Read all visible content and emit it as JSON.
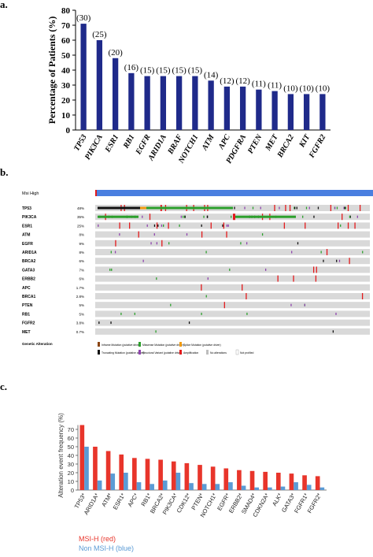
{
  "panels": {
    "a": "a.",
    "b": "b.",
    "c": "c."
  },
  "chart_data": [
    {
      "type": "bar",
      "ylabel": "Percentage of Patients (%)",
      "ylim": [
        0,
        80
      ],
      "yticks": [
        0,
        10,
        20,
        30,
        40,
        50,
        60,
        70,
        80
      ],
      "categories": [
        "TP53",
        "PIK3CA",
        "ESR1",
        "RB1",
        "EGFR",
        "ARID1A",
        "BRAF",
        "NOTCH1",
        "ATM",
        "APC",
        "PDGFRA",
        "PTEN",
        "MET",
        "BRCA2",
        "KIT",
        "FGFR2"
      ],
      "values": [
        71,
        60,
        48,
        38,
        36,
        36,
        36,
        36,
        33,
        29,
        29,
        27,
        26,
        24,
        24,
        24
      ],
      "data_labels": [
        "(30)",
        "(25)",
        "(20)",
        "(16)",
        "(15)",
        "(15)",
        "(15)",
        "(15)",
        "(14)",
        "(12)",
        "(12)",
        "(11)",
        "(11)",
        "(10)",
        "(10)",
        "(10)"
      ],
      "color": "#1f2a8a"
    },
    {
      "type": "heatmap",
      "header_track": {
        "label": "Msi High",
        "color": "#4a7fe0"
      },
      "genes": [
        "TP53",
        "PIK3CA",
        "ESR1",
        "ATM",
        "EGFR",
        "ARID1A",
        "BRCA2",
        "GATA3",
        "ERBB2",
        "APC",
        "BRCA1",
        "PTEN",
        "RB1",
        "FGFR2",
        "MET"
      ],
      "percentages": [
        "48%",
        "35%",
        "25%",
        "8%",
        "9%",
        "8%",
        "6%",
        "7%",
        "6%",
        "1.7%",
        "2.8%",
        "5%",
        "5%",
        "3.8%",
        "0.7%"
      ],
      "legend_title": "Genetic Alteration",
      "legend": [
        {
          "label": "Inframe Mutation (putative driver)",
          "color": "#8b4513"
        },
        {
          "label": "Missense Mutation (putative driver)",
          "color": "#2ca02c"
        },
        {
          "label": "Splice Mutation (putative driver)",
          "color": "#f39c12"
        },
        {
          "label": "Truncating Mutation (putative driver)",
          "color": "#111111"
        },
        {
          "label": "Structural Variant (putative driver)",
          "color": "#8e44ad"
        },
        {
          "label": "Amplification",
          "color": "#e31a1c"
        },
        {
          "label": "No alterations",
          "color": "#bdbdbd"
        },
        {
          "label": "Not profiled",
          "color": "#ffffff"
        }
      ]
    },
    {
      "type": "bar",
      "ylabel": "Alteration event frequency (%)",
      "ylim": [
        0,
        80
      ],
      "yticks": [
        0,
        10,
        20,
        30,
        40,
        50,
        60,
        70
      ],
      "categories": [
        "TP53*",
        "ARID1A*",
        "ATM*",
        "ESR1*",
        "APC*",
        "RB1*",
        "BRCA2*",
        "PIK3CA*",
        "CDK12*",
        "PTEN*",
        "NOTCH1*",
        "EGFR*",
        "ERBB2*",
        "SMAD4*",
        "CDKN2A*",
        "ALK*",
        "GATA3*",
        "FGFR1*",
        "FGFR2*"
      ],
      "series": [
        {
          "name": "MSI-H (red)",
          "color": "#e8352b",
          "values": [
            75,
            50,
            45,
            41,
            37,
            36,
            35,
            33,
            31,
            29,
            27,
            25,
            23,
            22,
            21,
            20,
            19,
            17,
            16
          ]
        },
        {
          "name": "Non MSI-H (blue)",
          "color": "#5b9bd5",
          "values": [
            50,
            11,
            19,
            20,
            9,
            7,
            11,
            20,
            8,
            7,
            7,
            9,
            5,
            3,
            3,
            4,
            9,
            6,
            3
          ]
        }
      ]
    }
  ]
}
